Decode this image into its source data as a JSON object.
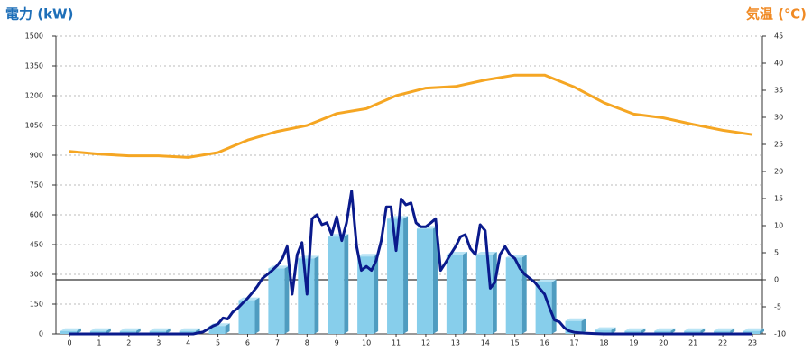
{
  "chart_data": {
    "type": "bar",
    "y_label": "電力 (kW)",
    "y2_label": "気温 (℃)",
    "categories": [
      "0",
      "1",
      "2",
      "3",
      "4",
      "5",
      "6",
      "7",
      "8",
      "9",
      "10",
      "11",
      "12",
      "13",
      "14",
      "15",
      "16",
      "17",
      "18",
      "19",
      "20",
      "21",
      "22",
      "23"
    ],
    "ylim": [
      0,
      1500
    ],
    "yticks": [
      0,
      150,
      300,
      450,
      600,
      750,
      900,
      1050,
      1200,
      1350,
      1500
    ],
    "y2lim": [
      -10,
      45
    ],
    "y2ticks": [
      -10,
      -5,
      0,
      5,
      10,
      15,
      20,
      25,
      30,
      35,
      40,
      45
    ],
    "grid": true,
    "series": [
      {
        "type": "bar",
        "color": "#87ceeb",
        "values": [
          15,
          15,
          15,
          15,
          15,
          40,
          170,
          330,
          380,
          490,
          390,
          580,
          530,
          400,
          400,
          385,
          260,
          65,
          20,
          15,
          15,
          15,
          15,
          15
        ]
      },
      {
        "type": "line",
        "color": "#0a1a8c",
        "x": [
          0,
          1,
          2,
          3,
          4,
          4.17,
          4.33,
          4.5,
          4.67,
          4.83,
          5,
          5.17,
          5.33,
          5.5,
          5.67,
          5.83,
          6,
          6.17,
          6.33,
          6.5,
          6.67,
          6.83,
          7,
          7.17,
          7.33,
          7.5,
          7.67,
          7.83,
          8,
          8.17,
          8.33,
          8.5,
          8.67,
          8.83,
          9,
          9.17,
          9.33,
          9.5,
          9.67,
          9.83,
          10,
          10.17,
          10.33,
          10.5,
          10.67,
          10.83,
          11,
          11.17,
          11.33,
          11.5,
          11.67,
          11.83,
          12,
          12.17,
          12.33,
          12.5,
          12.67,
          12.83,
          13,
          13.17,
          13.33,
          13.5,
          13.67,
          13.83,
          14,
          14.17,
          14.33,
          14.5,
          14.67,
          14.83,
          15,
          15.17,
          15.33,
          15.5,
          15.67,
          15.83,
          16,
          16.17,
          16.33,
          16.5,
          16.67,
          16.83,
          17,
          17.33,
          17.67,
          18,
          19,
          20,
          21,
          22,
          23
        ],
        "values": [
          0,
          0,
          0,
          0,
          0,
          0,
          5,
          10,
          25,
          40,
          50,
          80,
          75,
          110,
          130,
          155,
          180,
          210,
          240,
          280,
          300,
          320,
          345,
          380,
          440,
          200,
          400,
          460,
          200,
          580,
          600,
          550,
          560,
          500,
          590,
          470,
          560,
          720,
          440,
          320,
          340,
          320,
          370,
          470,
          640,
          640,
          420,
          680,
          650,
          660,
          560,
          540,
          540,
          560,
          580,
          320,
          360,
          400,
          440,
          490,
          500,
          430,
          400,
          550,
          520,
          230,
          260,
          400,
          440,
          400,
          380,
          330,
          300,
          280,
          260,
          230,
          200,
          130,
          70,
          60,
          30,
          15,
          8,
          4,
          2,
          0,
          0,
          0,
          0,
          0,
          0
        ]
      },
      {
        "type": "line",
        "axis": "y2",
        "color": "#f5a623",
        "values": [
          23.7,
          23.2,
          22.9,
          22.9,
          22.6,
          23.5,
          25.8,
          27.4,
          28.5,
          30.7,
          31.6,
          34,
          35.4,
          35.7,
          36.9,
          37.8,
          37.8,
          35.6,
          32.7,
          30.6,
          29.9,
          28.7,
          27.6,
          26.8
        ]
      }
    ]
  }
}
